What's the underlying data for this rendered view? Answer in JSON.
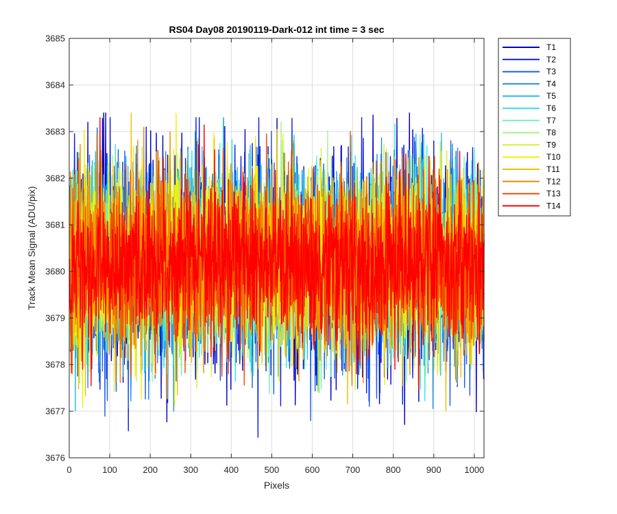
{
  "chart_data": {
    "type": "line",
    "title": "RS04 Day08 20190119-Dark-012 int time = 3 sec",
    "xlabel": "Pixels",
    "ylabel": "Track Mean Signal (ADU/pix)",
    "xlim": [
      0,
      1024
    ],
    "ylim": [
      3676,
      3685
    ],
    "x_ticks": [
      0,
      100,
      200,
      300,
      400,
      500,
      600,
      700,
      800,
      900,
      1000
    ],
    "y_ticks": [
      3676,
      3677,
      3678,
      3679,
      3680,
      3681,
      3682,
      3683,
      3684,
      3685
    ],
    "grid": true,
    "legend_position": "outside-right",
    "x_range": [
      1,
      1024
    ],
    "series": [
      {
        "name": "T1",
        "color": "#0000C6",
        "mean": 3680.2,
        "std": 1.15,
        "min": 3676.2,
        "max": 3683.4
      },
      {
        "name": "T2",
        "color": "#0A1FE0",
        "mean": 3680.2,
        "std": 1.1,
        "min": 3676.4,
        "max": 3683.3
      },
      {
        "name": "T3",
        "color": "#1A5CE6",
        "mean": 3680.2,
        "std": 1.05,
        "min": 3676.8,
        "max": 3683.3
      },
      {
        "name": "T4",
        "color": "#1F8CE8",
        "mean": 3680.2,
        "std": 1.0,
        "min": 3677.0,
        "max": 3683.4
      },
      {
        "name": "T5",
        "color": "#20BDEE",
        "mean": 3680.2,
        "std": 1.0,
        "min": 3676.7,
        "max": 3683.3
      },
      {
        "name": "T6",
        "color": "#33E6E6",
        "mean": 3680.2,
        "std": 0.95,
        "min": 3677.2,
        "max": 3683.2
      },
      {
        "name": "T7",
        "color": "#6FF0C8",
        "mean": 3680.2,
        "std": 0.95,
        "min": 3677.3,
        "max": 3683.5
      },
      {
        "name": "T8",
        "color": "#A6F08A",
        "mean": 3680.2,
        "std": 0.95,
        "min": 3677.3,
        "max": 3683.9
      },
      {
        "name": "T9",
        "color": "#D2F03C",
        "mean": 3680.2,
        "std": 0.95,
        "min": 3677.2,
        "max": 3683.8
      },
      {
        "name": "T10",
        "color": "#F5F000",
        "mean": 3680.2,
        "std": 0.95,
        "min": 3677.0,
        "max": 3683.4
      },
      {
        "name": "T11",
        "color": "#F2C000",
        "mean": 3680.2,
        "std": 0.95,
        "min": 3677.0,
        "max": 3684.1
      },
      {
        "name": "T12",
        "color": "#F08A00",
        "mean": 3680.2,
        "std": 0.95,
        "min": 3677.0,
        "max": 3684.3
      },
      {
        "name": "T13",
        "color": "#F04A00",
        "mean": 3680.2,
        "std": 0.9,
        "min": 3676.6,
        "max": 3683.3
      },
      {
        "name": "T14",
        "color": "#FF0000",
        "mean": 3680.2,
        "std": 0.85,
        "min": 3676.6,
        "max": 3683.3
      }
    ]
  }
}
